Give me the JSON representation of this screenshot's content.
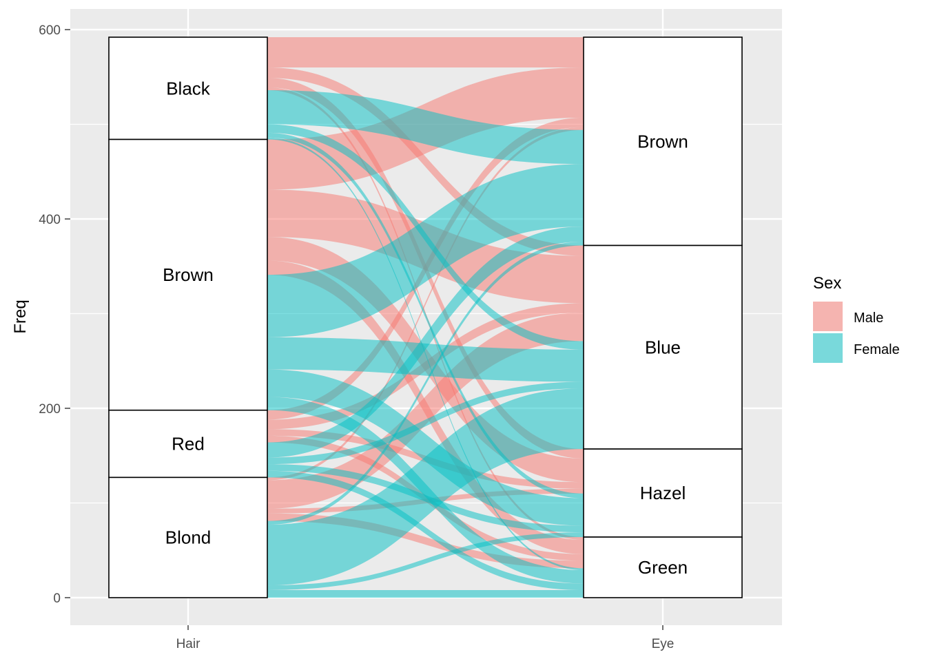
{
  "chart_data": {
    "type": "alluvial",
    "title": "",
    "xlabel": "",
    "ylabel": "Freq",
    "ylim": [
      -30,
      625
    ],
    "y_ticks": [
      0,
      200,
      400,
      600
    ],
    "axes": [
      "Hair",
      "Eye"
    ],
    "grid": true,
    "legend": {
      "title": "Sex",
      "position": "right",
      "entries": [
        {
          "name": "Male",
          "color": "#F8766D"
        },
        {
          "name": "Female",
          "color": "#00BFC4"
        }
      ]
    },
    "strata": {
      "Hair": [
        "Black",
        "Brown",
        "Red",
        "Blond"
      ],
      "Eye": [
        "Brown",
        "Blue",
        "Hazel",
        "Green"
      ]
    },
    "flows": [
      {
        "Hair": "Black",
        "Eye": "Brown",
        "Sex": "Male",
        "Freq": 32
      },
      {
        "Hair": "Brown",
        "Eye": "Brown",
        "Sex": "Male",
        "Freq": 53
      },
      {
        "Hair": "Red",
        "Eye": "Brown",
        "Sex": "Male",
        "Freq": 10
      },
      {
        "Hair": "Blond",
        "Eye": "Brown",
        "Sex": "Male",
        "Freq": 3
      },
      {
        "Hair": "Black",
        "Eye": "Blue",
        "Sex": "Male",
        "Freq": 11
      },
      {
        "Hair": "Brown",
        "Eye": "Blue",
        "Sex": "Male",
        "Freq": 50
      },
      {
        "Hair": "Red",
        "Eye": "Blue",
        "Sex": "Male",
        "Freq": 10
      },
      {
        "Hair": "Blond",
        "Eye": "Blue",
        "Sex": "Male",
        "Freq": 30
      },
      {
        "Hair": "Black",
        "Eye": "Hazel",
        "Sex": "Male",
        "Freq": 10
      },
      {
        "Hair": "Brown",
        "Eye": "Hazel",
        "Sex": "Male",
        "Freq": 25
      },
      {
        "Hair": "Red",
        "Eye": "Hazel",
        "Sex": "Male",
        "Freq": 7
      },
      {
        "Hair": "Blond",
        "Eye": "Hazel",
        "Sex": "Male",
        "Freq": 5
      },
      {
        "Hair": "Black",
        "Eye": "Green",
        "Sex": "Male",
        "Freq": 3
      },
      {
        "Hair": "Brown",
        "Eye": "Green",
        "Sex": "Male",
        "Freq": 15
      },
      {
        "Hair": "Red",
        "Eye": "Green",
        "Sex": "Male",
        "Freq": 7
      },
      {
        "Hair": "Blond",
        "Eye": "Green",
        "Sex": "Male",
        "Freq": 8
      },
      {
        "Hair": "Black",
        "Eye": "Brown",
        "Sex": "Female",
        "Freq": 36
      },
      {
        "Hair": "Brown",
        "Eye": "Brown",
        "Sex": "Female",
        "Freq": 66
      },
      {
        "Hair": "Red",
        "Eye": "Brown",
        "Sex": "Female",
        "Freq": 16
      },
      {
        "Hair": "Blond",
        "Eye": "Brown",
        "Sex": "Female",
        "Freq": 4
      },
      {
        "Hair": "Black",
        "Eye": "Blue",
        "Sex": "Female",
        "Freq": 9
      },
      {
        "Hair": "Brown",
        "Eye": "Blue",
        "Sex": "Female",
        "Freq": 34
      },
      {
        "Hair": "Red",
        "Eye": "Blue",
        "Sex": "Female",
        "Freq": 7
      },
      {
        "Hair": "Blond",
        "Eye": "Blue",
        "Sex": "Female",
        "Freq": 64
      },
      {
        "Hair": "Black",
        "Eye": "Hazel",
        "Sex": "Female",
        "Freq": 5
      },
      {
        "Hair": "Brown",
        "Eye": "Hazel",
        "Sex": "Female",
        "Freq": 29
      },
      {
        "Hair": "Red",
        "Eye": "Hazel",
        "Sex": "Female",
        "Freq": 7
      },
      {
        "Hair": "Blond",
        "Eye": "Hazel",
        "Sex": "Female",
        "Freq": 5
      },
      {
        "Hair": "Black",
        "Eye": "Green",
        "Sex": "Female",
        "Freq": 2
      },
      {
        "Hair": "Brown",
        "Eye": "Green",
        "Sex": "Female",
        "Freq": 14
      },
      {
        "Hair": "Red",
        "Eye": "Green",
        "Sex": "Female",
        "Freq": 7
      },
      {
        "Hair": "Blond",
        "Eye": "Green",
        "Sex": "Female",
        "Freq": 8
      }
    ]
  }
}
